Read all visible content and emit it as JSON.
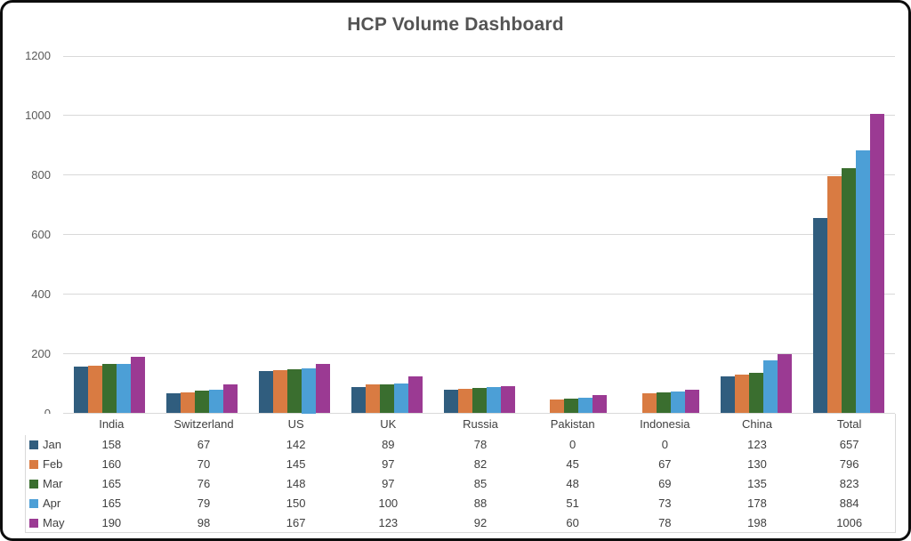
{
  "colors": {
    "frame_border": "#0d0d0d",
    "background": "#ffffff",
    "title_text": "#545454",
    "axis_tick_text": "#595959",
    "gridline": "#d9d9d9",
    "table_border": "#d9d9d9",
    "table_text": "#3f3f3f"
  },
  "chart_data": {
    "type": "bar",
    "title": "HCP Volume Dashboard",
    "xlabel": "",
    "ylabel": "",
    "categories": [
      "India",
      "Switzerland",
      "US",
      "UK",
      "Russia",
      "Pakistan",
      "Indonesia",
      "China",
      "Total"
    ],
    "series": [
      {
        "name": "Jan",
        "color": "#305D7E",
        "values": [
          158,
          67,
          142,
          89,
          78,
          0,
          0,
          123,
          657
        ]
      },
      {
        "name": "Feb",
        "color": "#D97B42",
        "values": [
          160,
          70,
          145,
          97,
          82,
          45,
          67,
          130,
          796
        ]
      },
      {
        "name": "Mar",
        "color": "#3A6E2F",
        "values": [
          165,
          76,
          148,
          97,
          85,
          48,
          69,
          135,
          823
        ]
      },
      {
        "name": "Apr",
        "color": "#4C9FD6",
        "values": [
          165,
          79,
          150,
          100,
          88,
          51,
          73,
          178,
          884
        ]
      },
      {
        "name": "May",
        "color": "#9B3A93",
        "values": [
          190,
          98,
          167,
          123,
          92,
          60,
          78,
          198,
          1006
        ]
      }
    ],
    "ylim": [
      0,
      1200
    ],
    "yticks": [
      0,
      200,
      400,
      600,
      800,
      1000,
      1200
    ],
    "grid": true,
    "legend_position": "data-table-row-labels",
    "data_table": true
  }
}
